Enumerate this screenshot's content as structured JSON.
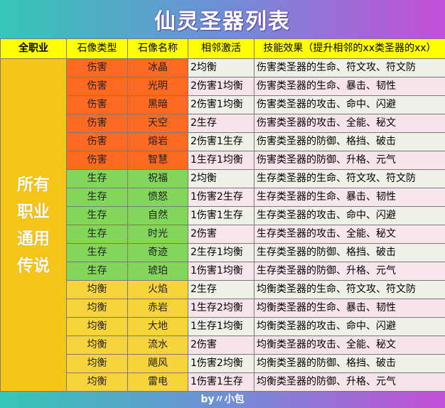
{
  "title": "仙灵圣器列表",
  "footer": "by〃小包",
  "header": {
    "role": "全职业",
    "type": "石像类型",
    "name": "石像名称",
    "adjacent": "相邻激活",
    "effect": "技能效果（提升相邻的xx类圣器的xx）"
  },
  "side_label": "所有职业通用传说",
  "colors": {
    "damage": "#ff6a22",
    "survival": "#82d65a",
    "balance": "#f8d43c",
    "header": "#ffff00",
    "side": "#f5c518"
  },
  "rows": [
    {
      "type": "伤害",
      "name": "冰晶",
      "adjacent": "2均衡",
      "effect": "伤害类圣器的生命、符文攻、符文防"
    },
    {
      "type": "伤害",
      "name": "光明",
      "adjacent": "2伤害1均衡",
      "effect": "伤害类圣器的生命、暴击、韧性"
    },
    {
      "type": "伤害",
      "name": "黑暗",
      "adjacent": "2伤害1均衡",
      "effect": "伤害类圣器的攻击、命中、闪避"
    },
    {
      "type": "伤害",
      "name": "天空",
      "adjacent": "2生存",
      "effect": "伤害类圣器的攻击、全能、秘文"
    },
    {
      "type": "伤害",
      "name": "熔岩",
      "adjacent": "2伤害1生存",
      "effect": "伤害类圣器的防御、格挡、破击"
    },
    {
      "type": "伤害",
      "name": "智慧",
      "adjacent": "1生存1均衡",
      "effect": "伤害类圣器的防御、升格、元气"
    },
    {
      "type": "生存",
      "name": "祝福",
      "adjacent": "2均衡",
      "effect": "生存类圣器的生命、符文攻、符文防"
    },
    {
      "type": "生存",
      "name": "愤怒",
      "adjacent": "1伤害2生存",
      "effect": "生存类圣器的生命、暴击、韧性"
    },
    {
      "type": "生存",
      "name": "自然",
      "adjacent": "1伤害1生存",
      "effect": "生存类圣器的攻击、命中、闪避"
    },
    {
      "type": "生存",
      "name": "时光",
      "adjacent": "2伤害",
      "effect": "生存类圣器的攻击、全能、秘文"
    },
    {
      "type": "生存",
      "name": "奇迹",
      "adjacent": "2生存1均衡",
      "effect": "生存类圣器的防御、格挡、破击"
    },
    {
      "type": "生存",
      "name": "琥珀",
      "adjacent": "1伤害1均衡",
      "effect": "生存类圣器的防御、升格、元气"
    },
    {
      "type": "均衡",
      "name": "火焰",
      "adjacent": "2生存",
      "effect": "均衡类圣器的生命、符文攻、符文防"
    },
    {
      "type": "均衡",
      "name": "赤岩",
      "adjacent": "1生存2均衡",
      "effect": "均衡类圣器的生命、暴击、韧性"
    },
    {
      "type": "均衡",
      "name": "大地",
      "adjacent": "1生存1均衡",
      "effect": "均衡类圣器的攻击、命中、闪避"
    },
    {
      "type": "均衡",
      "name": "流水",
      "adjacent": "2伤害",
      "effect": "均衡类圣器的攻击、全能、秘文"
    },
    {
      "type": "均衡",
      "name": "飓风",
      "adjacent": "1伤害2均衡",
      "effect": "均衡类圣器的防御、格挡、破击"
    },
    {
      "type": "均衡",
      "name": "雷电",
      "adjacent": "1伤害1生存",
      "effect": "均衡类圣器的防御、升格、元气"
    }
  ]
}
